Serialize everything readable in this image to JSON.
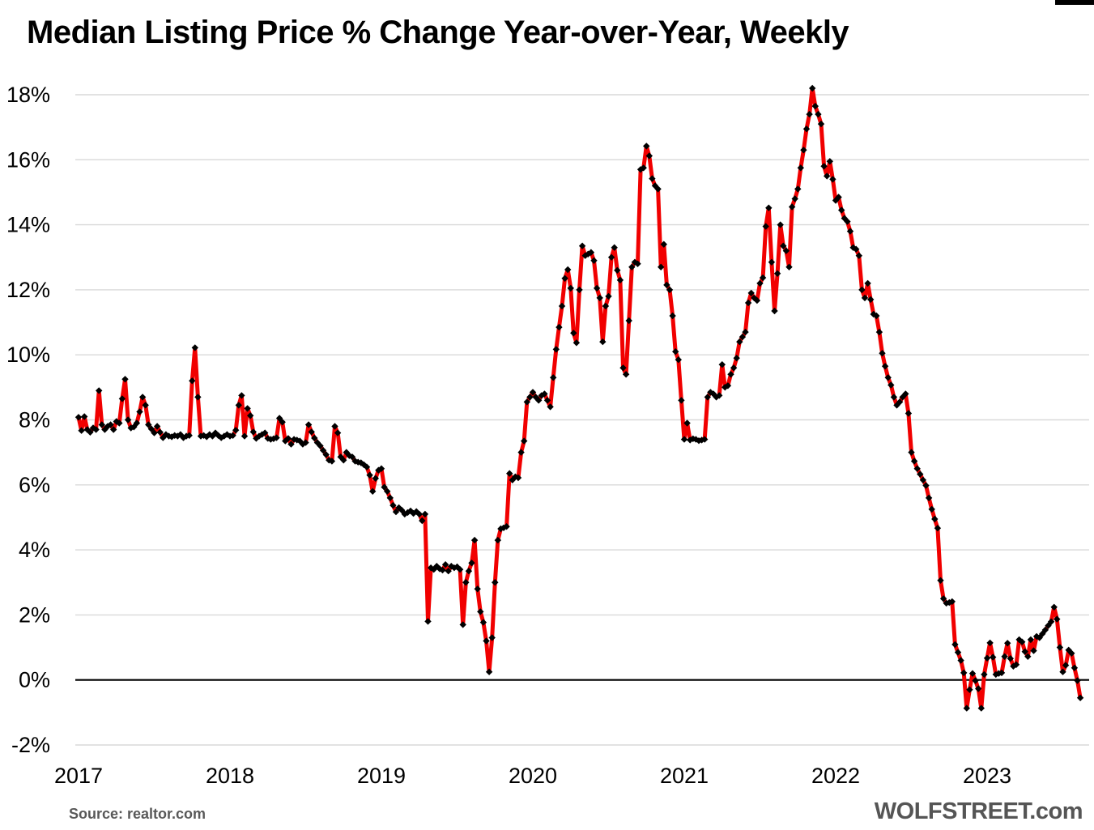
{
  "title": "Median Listing Price % Change Year-over-Year, Weekly",
  "footer": {
    "source": "Source: realtor.com",
    "branding": "WOLFSTREET.com"
  },
  "chart_data": {
    "type": "line",
    "title": "Median Listing Price % Change Year-over-Year, Weekly",
    "x_start_year": 2017,
    "points_per_year": 52,
    "x_tick_labels": [
      "2017",
      "2018",
      "2019",
      "2020",
      "2021",
      "2022",
      "2023"
    ],
    "y_ticks": [
      -2,
      0,
      2,
      4,
      6,
      8,
      10,
      12,
      14,
      16,
      18
    ],
    "y_unit": "%",
    "ylim": [
      -2,
      18
    ],
    "grid": true,
    "legend": "none",
    "grid_color": "#d9d9d9",
    "zero_line_color": "#000000",
    "line_color": "#f10000",
    "marker": "diamond",
    "marker_color": "#000000",
    "series": [
      {
        "name": "Median listing price % change year-over-year, weekly",
        "values": [
          8.08,
          7.67,
          8.1,
          7.7,
          7.62,
          7.75,
          7.7,
          8.9,
          7.85,
          7.7,
          7.8,
          7.85,
          7.7,
          7.95,
          7.9,
          8.65,
          9.25,
          8.0,
          7.75,
          7.78,
          7.9,
          8.25,
          8.7,
          8.45,
          7.85,
          7.72,
          7.6,
          7.8,
          7.62,
          7.45,
          7.55,
          7.5,
          7.48,
          7.52,
          7.5,
          7.55,
          7.45,
          7.5,
          7.52,
          9.2,
          10.22,
          8.7,
          7.5,
          7.52,
          7.48,
          7.55,
          7.5,
          7.6,
          7.52,
          7.45,
          7.5,
          7.55,
          7.5,
          7.52,
          7.68,
          8.45,
          8.75,
          7.5,
          8.35,
          8.13,
          7.63,
          7.43,
          7.5,
          7.55,
          7.6,
          7.43,
          7.4,
          7.42,
          7.45,
          8.05,
          7.93,
          7.35,
          7.43,
          7.25,
          7.4,
          7.38,
          7.35,
          7.25,
          7.3,
          7.85,
          7.63,
          7.44,
          7.3,
          7.2,
          7.06,
          6.93,
          6.76,
          6.73,
          7.8,
          7.6,
          6.86,
          6.76,
          7.0,
          6.9,
          6.86,
          6.73,
          6.7,
          6.68,
          6.62,
          6.55,
          6.3,
          5.8,
          6.2,
          6.45,
          6.5,
          5.93,
          5.8,
          5.6,
          5.37,
          5.17,
          5.3,
          5.22,
          5.1,
          5.15,
          5.2,
          5.12,
          5.18,
          5.1,
          4.9,
          5.1,
          1.8,
          3.45,
          3.4,
          3.5,
          3.42,
          3.38,
          3.55,
          3.35,
          3.5,
          3.45,
          3.48,
          3.4,
          1.7,
          3.0,
          3.35,
          3.6,
          4.3,
          2.8,
          2.1,
          1.77,
          1.2,
          0.25,
          1.3,
          3.0,
          4.3,
          4.65,
          4.68,
          4.72,
          6.35,
          6.15,
          6.25,
          6.22,
          7.0,
          7.35,
          8.55,
          8.7,
          8.85,
          8.7,
          8.6,
          8.75,
          8.8,
          8.6,
          8.4,
          9.3,
          10.17,
          10.85,
          11.5,
          12.35,
          12.62,
          12.05,
          10.67,
          10.37,
          12.0,
          13.35,
          13.05,
          13.1,
          13.15,
          12.9,
          12.05,
          11.75,
          10.4,
          11.5,
          11.8,
          13.0,
          13.3,
          12.6,
          12.3,
          9.6,
          9.4,
          11.05,
          12.7,
          12.85,
          12.8,
          15.7,
          15.75,
          16.42,
          16.12,
          15.42,
          15.2,
          15.1,
          12.7,
          13.4,
          12.15,
          12.0,
          11.2,
          10.1,
          9.85,
          8.6,
          7.4,
          7.9,
          7.38,
          7.42,
          7.4,
          7.36,
          7.38,
          7.4,
          8.7,
          8.85,
          8.8,
          8.7,
          8.75,
          9.7,
          9.0,
          9.05,
          9.4,
          9.6,
          9.9,
          10.4,
          10.55,
          10.7,
          11.6,
          11.9,
          11.75,
          11.67,
          12.2,
          12.37,
          13.95,
          14.52,
          12.85,
          11.35,
          12.5,
          14.0,
          13.35,
          13.2,
          12.7,
          14.55,
          14.8,
          15.1,
          15.75,
          16.3,
          16.95,
          17.4,
          18.2,
          17.65,
          17.4,
          17.1,
          15.8,
          15.5,
          15.95,
          15.4,
          14.75,
          14.85,
          14.45,
          14.2,
          14.1,
          13.8,
          13.3,
          13.25,
          13.05,
          12.0,
          11.75,
          12.2,
          11.7,
          11.25,
          11.2,
          10.7,
          10.05,
          9.65,
          9.3,
          9.07,
          8.7,
          8.45,
          8.55,
          8.7,
          8.8,
          8.2,
          7.0,
          6.73,
          6.5,
          6.33,
          6.15,
          5.98,
          5.6,
          5.25,
          4.95,
          4.67,
          3.06,
          2.5,
          2.36,
          2.38,
          2.41,
          1.09,
          0.85,
          0.6,
          0.22,
          -0.87,
          -0.3,
          0.2,
          -0.02,
          -0.27,
          -0.87,
          0.17,
          0.67,
          1.14,
          0.7,
          0.17,
          0.2,
          0.22,
          0.72,
          1.13,
          0.66,
          0.42,
          0.47,
          1.24,
          1.17,
          0.87,
          0.72,
          1.24,
          0.9,
          1.34,
          1.3,
          1.42,
          1.54,
          1.67,
          1.79,
          2.24,
          1.87,
          1.0,
          0.25,
          0.45,
          0.92,
          0.82,
          0.37,
          -0.02,
          -0.55
        ]
      }
    ]
  }
}
